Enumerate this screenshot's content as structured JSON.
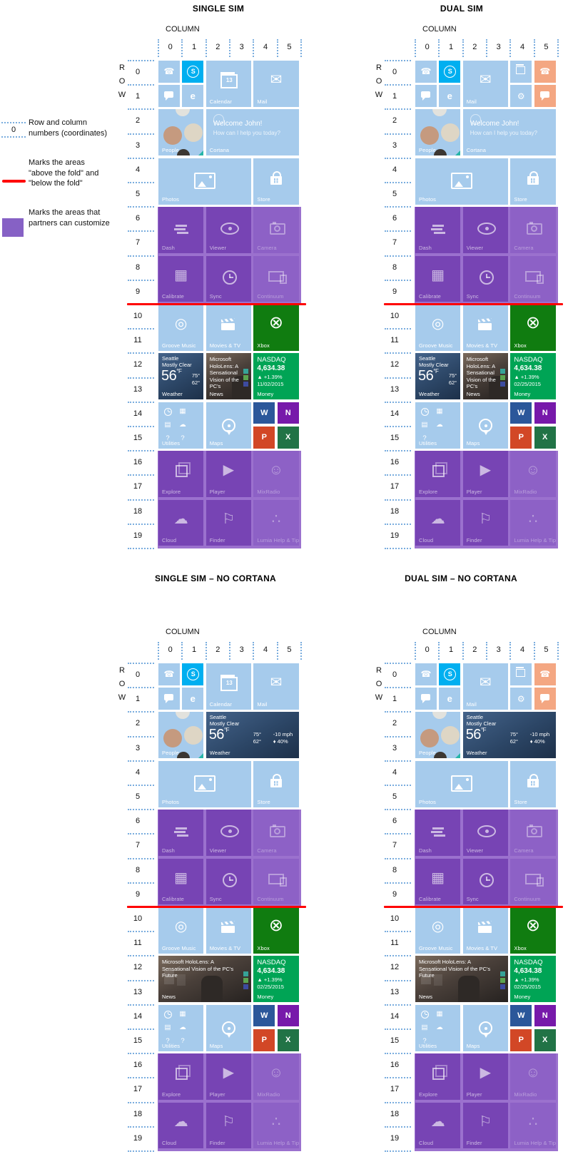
{
  "legend": {
    "coordinate_sample": "0",
    "items": [
      {
        "id": "coordinates",
        "text": "Row and column numbers (coordinates)"
      },
      {
        "id": "fold-line",
        "text": "Marks the areas \"above the fold\" and \"below the fold\""
      },
      {
        "id": "partner-area",
        "text": "Marks the areas that partners can customize"
      }
    ]
  },
  "axis": {
    "column_label": "COLUMN",
    "row_label": "ROW",
    "columns": [
      "0",
      "1",
      "2",
      "3",
      "4",
      "5"
    ],
    "rows": [
      "0",
      "1",
      "2",
      "3",
      "4",
      "5",
      "6",
      "7",
      "8",
      "9",
      "10",
      "11",
      "12",
      "13",
      "14",
      "15",
      "16",
      "17",
      "18",
      "19"
    ]
  },
  "colors": {
    "tile_blue": "#a6cbec",
    "skype_blue": "#00aff0",
    "salmon": "#f4a782",
    "purple_region": "#9b71ce",
    "purple_tile": "#7744b4",
    "purple_faded": "#8d61c6",
    "legend_purple": "#8661c5",
    "xbox_green": "#107c10",
    "money_green": "#00a455",
    "word_blue": "#2b579a",
    "onenote_purple": "#7719aa",
    "powerpoint_red": "#d24726",
    "excel_green": "#217346",
    "fold_red": "#ff0000"
  },
  "tile_library": {
    "phone": {
      "name": "phone",
      "r": 0,
      "c": 0,
      "rows": 1,
      "cols": 1,
      "icon": "phone"
    },
    "skype": {
      "name": "skype",
      "r": 0,
      "c": 1,
      "rows": 1,
      "cols": 1,
      "icon": "skype",
      "color": "skype"
    },
    "messaging": {
      "name": "messaging",
      "r": 1,
      "c": 0,
      "rows": 1,
      "cols": 1,
      "icon": "bubble"
    },
    "edge": {
      "name": "edge",
      "r": 1,
      "c": 1,
      "rows": 1,
      "cols": 1,
      "icon": "edge"
    },
    "calendar_med": {
      "name": "calendar",
      "r": 0,
      "c": 2,
      "rows": 2,
      "cols": 2,
      "icon": "calendar",
      "icon_text": "13",
      "label": "Calendar"
    },
    "mail_med_right": {
      "name": "mail",
      "r": 0,
      "c": 4,
      "rows": 2,
      "cols": 2,
      "icon": "mail",
      "label": "Mail"
    },
    "mail_med_mid": {
      "name": "mail",
      "r": 0,
      "c": 2,
      "rows": 2,
      "cols": 2,
      "icon": "mail",
      "label": "Mail"
    },
    "calendar_small": {
      "name": "calendar-small",
      "r": 0,
      "c": 4,
      "rows": 1,
      "cols": 1,
      "icon": "calendar",
      "icon_text": ""
    },
    "phone_2": {
      "name": "phone-2",
      "r": 0,
      "c": 5,
      "rows": 1,
      "cols": 1,
      "icon": "phone",
      "color": "salmon"
    },
    "settings": {
      "name": "settings",
      "r": 1,
      "c": 4,
      "rows": 1,
      "cols": 1,
      "icon": "gear"
    },
    "messaging_2": {
      "name": "messaging-2",
      "r": 1,
      "c": 5,
      "rows": 1,
      "cols": 1,
      "icon": "bubble",
      "color": "salmon"
    },
    "people": {
      "name": "people",
      "type": "people",
      "r": 2,
      "c": 0,
      "rows": 2,
      "cols": 2,
      "label": "People"
    },
    "cortana": {
      "name": "cortana",
      "type": "cortana",
      "r": 2,
      "c": 2,
      "rows": 2,
      "cols": 4,
      "greeting": "Welcome John!",
      "question": "How can I help you today?",
      "label": "Cortana"
    },
    "weather_wide": {
      "name": "weather",
      "type": "weather",
      "r": 2,
      "c": 2,
      "rows": 2,
      "cols": 4,
      "city": "Seattle",
      "condition": "Mostly Clear",
      "temp": "56",
      "unit": "°F",
      "high": "75°",
      "low": "62°",
      "wind": "-10 mph",
      "precip": "40%",
      "label": "Weather",
      "color": "weather"
    },
    "photos": {
      "name": "photos",
      "r": 4,
      "c": 0,
      "rows": 2,
      "cols": 4,
      "icon": "photos",
      "label": "Photos"
    },
    "store": {
      "name": "store",
      "r": 4,
      "c": 4,
      "rows": 2,
      "cols": 2,
      "icon": "bag",
      "label": "Store"
    },
    "dash": {
      "name": "dash",
      "r": 6,
      "c": 0,
      "rows": 2,
      "cols": 2,
      "icon": "bars",
      "label": "Dash",
      "color": "purple"
    },
    "viewer": {
      "name": "viewer",
      "r": 6,
      "c": 2,
      "rows": 2,
      "cols": 2,
      "icon": "eye",
      "label": "Viewer",
      "color": "purple"
    },
    "camera": {
      "name": "camera",
      "r": 6,
      "c": 4,
      "rows": 2,
      "cols": 2,
      "icon": "camera",
      "label": "Camera",
      "color": "purple-faded"
    },
    "calibrate": {
      "name": "calibrate",
      "r": 8,
      "c": 0,
      "rows": 2,
      "cols": 2,
      "icon": "grid",
      "label": "Calibrate",
      "color": "purple"
    },
    "sync": {
      "name": "sync",
      "r": 8,
      "c": 2,
      "rows": 2,
      "cols": 2,
      "icon": "clock",
      "label": "Sync",
      "color": "purple"
    },
    "continuum": {
      "name": "continuum",
      "r": 8,
      "c": 4,
      "rows": 2,
      "cols": 2,
      "icon": "screens",
      "label": "Continuum",
      "color": "purple-faded"
    },
    "groove": {
      "name": "groove-music",
      "r": 10,
      "c": 0,
      "rows": 2,
      "cols": 2,
      "icon": "groove",
      "label": "Groove Music"
    },
    "movies": {
      "name": "movies-tv",
      "r": 10,
      "c": 2,
      "rows": 2,
      "cols": 2,
      "icon": "clapper",
      "label": "Movies & TV"
    },
    "xbox": {
      "name": "xbox",
      "r": 10,
      "c": 4,
      "rows": 2,
      "cols": 2,
      "icon": "xbox",
      "label": "Xbox",
      "color": "xbox"
    },
    "weather_med": {
      "name": "weather",
      "type": "weather-med",
      "r": 12,
      "c": 0,
      "rows": 2,
      "cols": 2,
      "city": "Seattle",
      "condition": "Mostly Clear",
      "temp": "56",
      "unit": "°F",
      "high": "75°",
      "low": "62°",
      "label": "Weather",
      "color": "weather"
    },
    "news_med": {
      "name": "news",
      "type": "news",
      "r": 12,
      "c": 2,
      "rows": 2,
      "cols": 2,
      "headline": "Microsoft HoloLens: A Sensational Vision of the PC's",
      "label": "News",
      "color": "news"
    },
    "news_wide": {
      "name": "news",
      "type": "news-wide",
      "r": 12,
      "c": 0,
      "rows": 2,
      "cols": 4,
      "headline": "Microsoft HoloLens: A Sensational Vision of the PC's Future",
      "label": "News",
      "color": "news"
    },
    "money": {
      "name": "money",
      "type": "money",
      "r": 12,
      "c": 4,
      "rows": 2,
      "cols": 2,
      "index": "NASDAQ",
      "value": "4,634.38",
      "change": "▲ +1.39%",
      "date": "02/25/2015",
      "label": "Money",
      "color": "money"
    },
    "utilities": {
      "name": "utilities",
      "type": "utilities",
      "r": 14,
      "c": 0,
      "rows": 2,
      "cols": 2,
      "label": "Utilities",
      "icons": [
        "clock",
        "calculator",
        "folder",
        "cloud",
        "settings",
        "help"
      ]
    },
    "maps": {
      "name": "maps",
      "r": 14,
      "c": 2,
      "rows": 2,
      "cols": 2,
      "icon": "pin",
      "label": "Maps"
    },
    "word": {
      "name": "word",
      "r": 14,
      "c": 4,
      "rows": 1,
      "cols": 1,
      "icon": "letter",
      "icon_text": "W",
      "color": "word"
    },
    "onenote": {
      "name": "onenote",
      "r": 14,
      "c": 5,
      "rows": 1,
      "cols": 1,
      "icon": "letter",
      "icon_text": "N",
      "color": "onenote"
    },
    "powerpoint": {
      "name": "powerpoint",
      "r": 15,
      "c": 4,
      "rows": 1,
      "cols": 1,
      "icon": "letter",
      "icon_text": "P",
      "color": "powerpoint"
    },
    "excel": {
      "name": "excel",
      "r": 15,
      "c": 5,
      "rows": 1,
      "cols": 1,
      "icon": "letter",
      "icon_text": "X",
      "color": "excel"
    },
    "explore": {
      "name": "explore",
      "r": 16,
      "c": 0,
      "rows": 2,
      "cols": 2,
      "icon": "cube",
      "label": "Explore",
      "color": "purple"
    },
    "player": {
      "name": "player",
      "r": 16,
      "c": 2,
      "rows": 2,
      "cols": 2,
      "icon": "play",
      "label": "Player",
      "color": "purple"
    },
    "mixradio": {
      "name": "mixradio",
      "r": 16,
      "c": 4,
      "rows": 2,
      "cols": 2,
      "icon": "smiley",
      "label": "MixRadio",
      "color": "purple-faded"
    },
    "cloud": {
      "name": "cloud",
      "r": 18,
      "c": 0,
      "rows": 2,
      "cols": 2,
      "icon": "cloud",
      "label": "Cloud",
      "color": "purple"
    },
    "finder": {
      "name": "finder",
      "r": 18,
      "c": 2,
      "rows": 2,
      "cols": 2,
      "icon": "flag",
      "label": "Finder",
      "color": "purple"
    },
    "lumia_help": {
      "name": "lumia-help-tips",
      "r": 18,
      "c": 4,
      "rows": 2,
      "cols": 2,
      "icon": "share",
      "label": "Lumia Help & Tips",
      "color": "purple-faded"
    }
  },
  "grids": [
    {
      "id": "single-sim",
      "title": "SINGLE SIM",
      "tiles": [
        "phone",
        "skype",
        "calendar_med",
        "mail_med_right",
        "messaging",
        "edge",
        "people",
        "cortana",
        "photos",
        "store",
        "dash",
        "viewer",
        "camera",
        "calibrate",
        "sync",
        "continuum",
        "groove",
        "movies",
        "xbox",
        "weather_med",
        "news_med",
        {
          "use": "money",
          "date": "11/02/2015"
        },
        "utilities",
        "maps",
        "word",
        "onenote",
        "powerpoint",
        "excel",
        "explore",
        "player",
        "mixradio",
        "cloud",
        "finder",
        "lumia_help"
      ]
    },
    {
      "id": "dual-sim",
      "title": "DUAL SIM",
      "tiles": [
        "phone",
        "skype",
        "mail_med_mid",
        "calendar_small",
        "phone_2",
        "messaging",
        "edge",
        "settings",
        "messaging_2",
        "people",
        "cortana",
        "photos",
        "store",
        "dash",
        "viewer",
        "camera",
        "calibrate",
        "sync",
        "continuum",
        "groove",
        "movies",
        "xbox",
        "weather_med",
        "news_med",
        "money",
        {
          "use": "utilities",
          "icons": [
            "clock",
            "calculator",
            "folder",
            "cloud",
            "help"
          ]
        },
        "maps",
        "word",
        "onenote",
        "powerpoint",
        "excel",
        "explore",
        "player",
        "mixradio",
        "cloud",
        "finder",
        "lumia_help"
      ]
    },
    {
      "id": "single-sim-no-cortana",
      "title": "SINGLE SIM – NO CORTANA",
      "tiles": [
        "phone",
        "skype",
        "calendar_med",
        "mail_med_right",
        "messaging",
        "edge",
        "people",
        "weather_wide",
        "photos",
        "store",
        "dash",
        "viewer",
        "camera",
        "calibrate",
        "sync",
        "continuum",
        "groove",
        "movies",
        "xbox",
        "news_wide",
        "money",
        "utilities",
        "maps",
        "word",
        "onenote",
        "powerpoint",
        "excel",
        "explore",
        "player",
        "mixradio",
        "cloud",
        "finder",
        "lumia_help"
      ]
    },
    {
      "id": "dual-sim-no-cortana",
      "title": "DUAL SIM – NO CORTANA",
      "tiles": [
        "phone",
        "skype",
        "mail_med_mid",
        "calendar_small",
        "phone_2",
        "messaging",
        "edge",
        "settings",
        "messaging_2",
        "people",
        "weather_wide",
        "photos",
        "store",
        "dash",
        "viewer",
        "camera",
        "calibrate",
        "sync",
        "continuum",
        "groove",
        "movies",
        "xbox",
        "news_wide",
        "money",
        {
          "use": "utilities",
          "icons": [
            "clock",
            "calculator",
            "folder",
            "cloud",
            "help"
          ]
        },
        "maps",
        "word",
        "onenote",
        "powerpoint",
        "excel",
        "explore",
        "player",
        "mixradio",
        "cloud",
        "finder",
        "lumia_help"
      ]
    }
  ]
}
